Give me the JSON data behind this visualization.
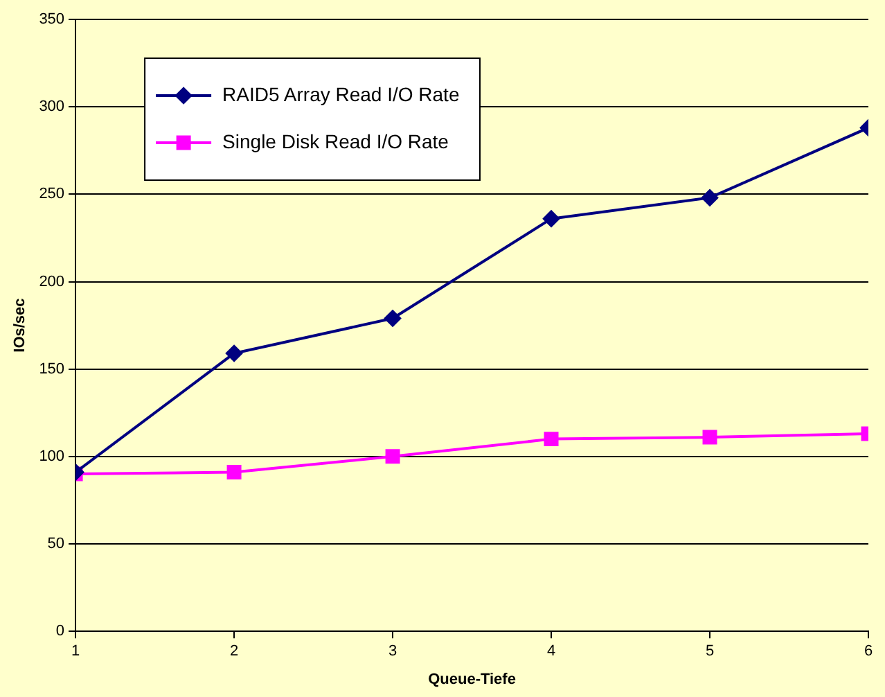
{
  "chart_data": {
    "type": "line",
    "xlabel": "Queue-Tiefe",
    "ylabel": "IOs/sec",
    "x": [
      1,
      2,
      3,
      4,
      5,
      6
    ],
    "series": [
      {
        "name": "RAID5 Array Read I/O Rate",
        "color": "#000080",
        "marker": "diamond",
        "values": [
          91,
          159,
          179,
          236,
          248,
          288
        ]
      },
      {
        "name": "Single Disk Read I/O Rate",
        "color": "#ff00ff",
        "marker": "square",
        "values": [
          90,
          91,
          100,
          110,
          111,
          113
        ]
      }
    ],
    "xlim": [
      1,
      6
    ],
    "xticks": [
      1,
      2,
      3,
      4,
      5,
      6
    ],
    "ylim": [
      0,
      350
    ],
    "yticks": [
      0,
      50,
      100,
      150,
      200,
      250,
      300,
      350
    ],
    "grid": "y",
    "legend": "top left",
    "line_style": "solid"
  }
}
